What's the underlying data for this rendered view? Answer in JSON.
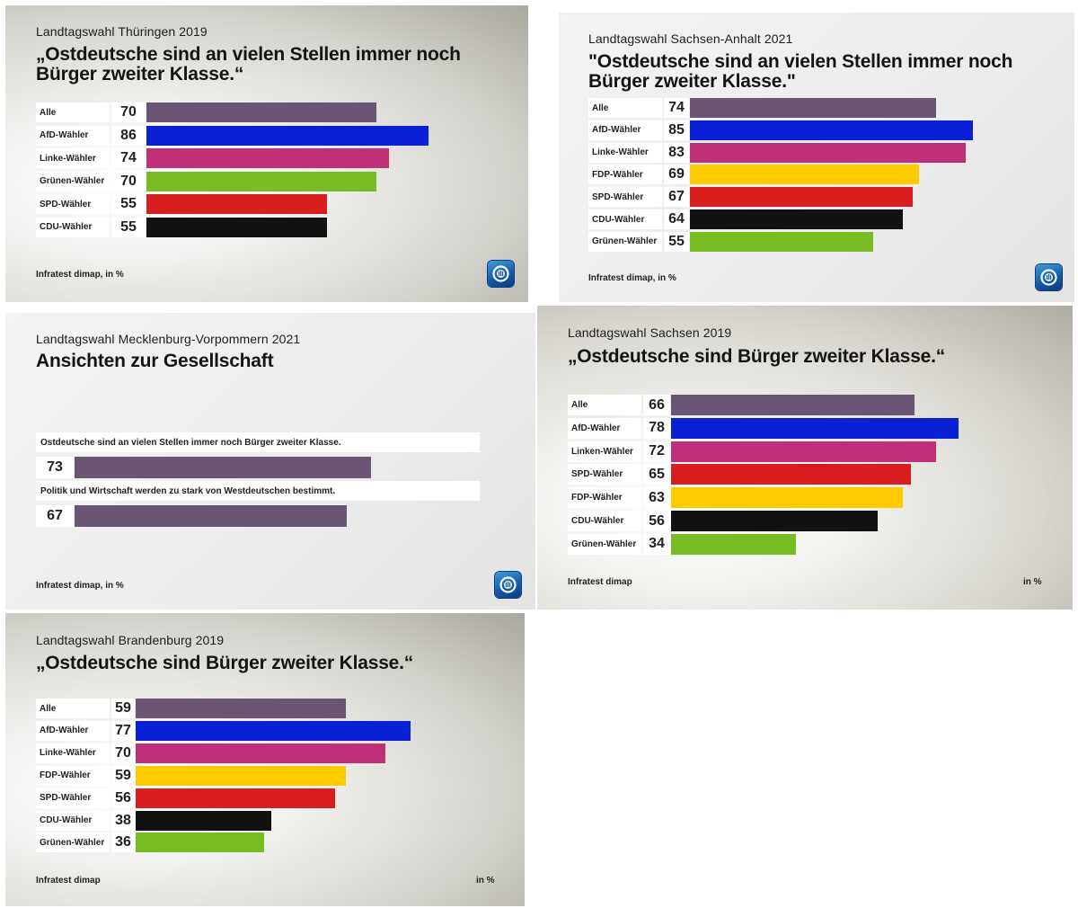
{
  "colors": {
    "alle": "#6b5574",
    "afd": "#0a20d4",
    "linke": "#bf3078",
    "gruene": "#78bc23",
    "spd": "#d81e1e",
    "cdu": "#111111",
    "fdp": "#fdcb00"
  },
  "logo_icon": "ard-tagesschau-logo-icon",
  "chart_data": [
    {
      "type": "bar",
      "subtitle": "Landtagswahl Thüringen 2019",
      "title": "„Ostdeutsche sind an vielen Stellen immer noch Bürger zweiter Klasse.“",
      "categories": [
        "Alle",
        "AfD-Wähler",
        "Linke-Wähler",
        "Grünen-Wähler",
        "SPD-Wähler",
        "CDU-Wähler"
      ],
      "values": [
        70,
        86,
        74,
        70,
        55,
        55
      ],
      "color_keys": [
        "alle",
        "afd",
        "linke",
        "gruene",
        "spd",
        "cdu"
      ],
      "source": "Infratest dimap, in %"
    },
    {
      "type": "bar",
      "subtitle": "Landtagswahl Sachsen-Anhalt 2021",
      "title": "\"Ostdeutsche sind an vielen Stellen immer noch Bürger zweiter Klasse.\"",
      "categories": [
        "Alle",
        "AfD-Wähler",
        "Linke-Wähler",
        "FDP-Wähler",
        "SPD-Wähler",
        "CDU-Wähler",
        "Grünen-Wähler"
      ],
      "values": [
        74,
        85,
        83,
        69,
        67,
        64,
        55
      ],
      "color_keys": [
        "alle",
        "afd",
        "linke",
        "fdp",
        "spd",
        "cdu",
        "gruene"
      ],
      "source": "Infratest dimap, in %"
    },
    {
      "type": "bar",
      "subtitle": "Landtagswahl Mecklenburg-Vorpommern 2021",
      "title": "Ansichten zur Gesellschaft",
      "categories": [
        "Ostdeutsche sind an vielen Stellen immer noch Bürger zweiter Klasse.",
        "Politik und Wirtschaft werden zu stark von Westdeutschen bestimmt."
      ],
      "values": [
        73,
        67
      ],
      "color_keys": [
        "alle",
        "alle"
      ],
      "source": "Infratest dimap, in %"
    },
    {
      "type": "bar",
      "subtitle": "Landtagswahl Sachsen 2019",
      "title": "„Ostdeutsche sind Bürger zweiter Klasse.“",
      "categories": [
        "Alle",
        "AfD-Wähler",
        "Linken-Wähler",
        "SPD-Wähler",
        "FDP-Wähler",
        "CDU-Wähler",
        "Grünen-Wähler"
      ],
      "values": [
        66,
        78,
        72,
        65,
        63,
        56,
        34
      ],
      "color_keys": [
        "alle",
        "afd",
        "linke",
        "spd",
        "fdp",
        "cdu",
        "gruene"
      ],
      "source": "Infratest dimap",
      "unit": "in %"
    },
    {
      "type": "bar",
      "subtitle": "Landtagswahl Brandenburg 2019",
      "title": "„Ostdeutsche sind Bürger zweiter Klasse.“",
      "categories": [
        "Alle",
        "AfD-Wähler",
        "Linke-Wähler",
        "FDP-Wähler",
        "SPD-Wähler",
        "CDU-Wähler",
        "Grünen-Wähler"
      ],
      "values": [
        59,
        77,
        70,
        59,
        56,
        38,
        36
      ],
      "color_keys": [
        "alle",
        "afd",
        "linke",
        "fdp",
        "spd",
        "cdu",
        "gruene"
      ],
      "source": "Infratest dimap",
      "unit": "in %"
    }
  ]
}
